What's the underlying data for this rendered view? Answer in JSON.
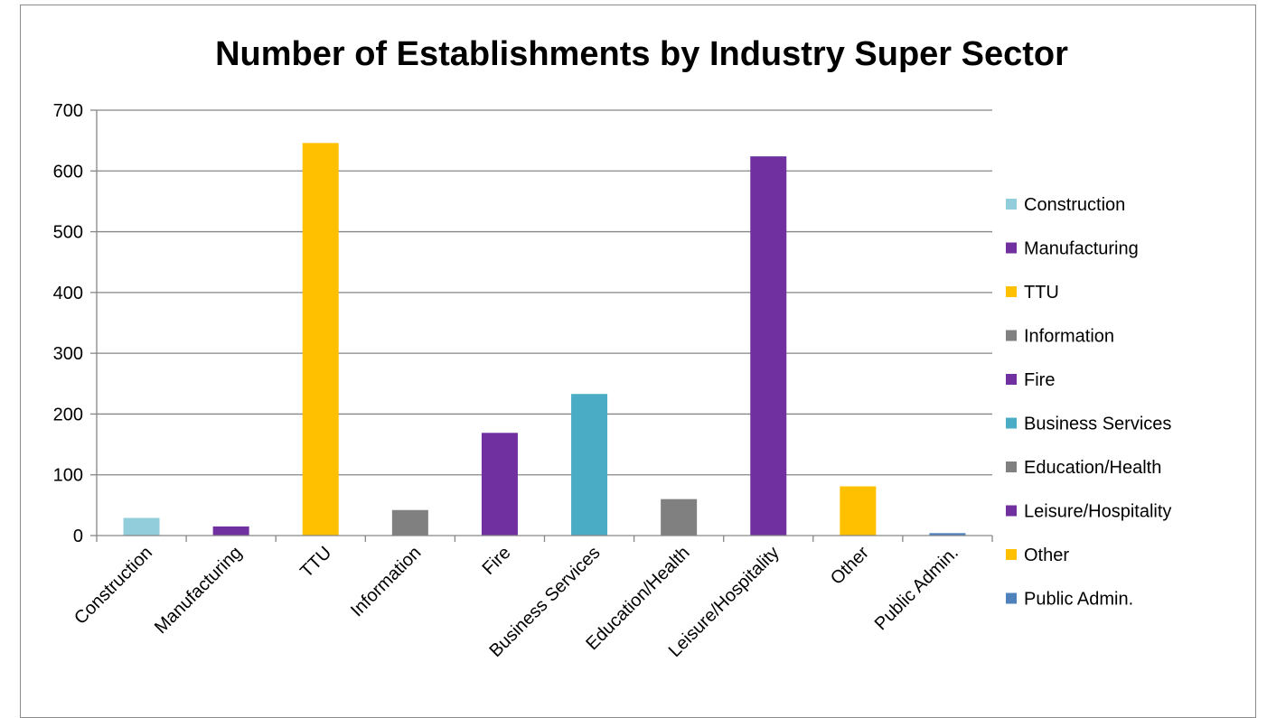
{
  "chart_data": {
    "type": "bar",
    "title": "Number of Establishments by Industry Super Sector",
    "xlabel": "",
    "ylabel": "",
    "ylim": [
      0,
      700
    ],
    "y_ticks": [
      0,
      100,
      200,
      300,
      400,
      500,
      600,
      700
    ],
    "grid": true,
    "legend_position": "right",
    "categories": [
      "Construction",
      "Manufacturing",
      "TTU",
      "Information",
      "Fire",
      "Business Services",
      "Education/Health",
      "Leisure/Hospitality",
      "Other",
      "Public Admin."
    ],
    "values": [
      29,
      15,
      646,
      42,
      169,
      233,
      60,
      624,
      81,
      4
    ],
    "colors": [
      "#92CDDC",
      "#7030A0",
      "#FFC000",
      "#808080",
      "#7030A0",
      "#4BACC6",
      "#808080",
      "#7030A0",
      "#FFC000",
      "#4F81BD"
    ]
  }
}
